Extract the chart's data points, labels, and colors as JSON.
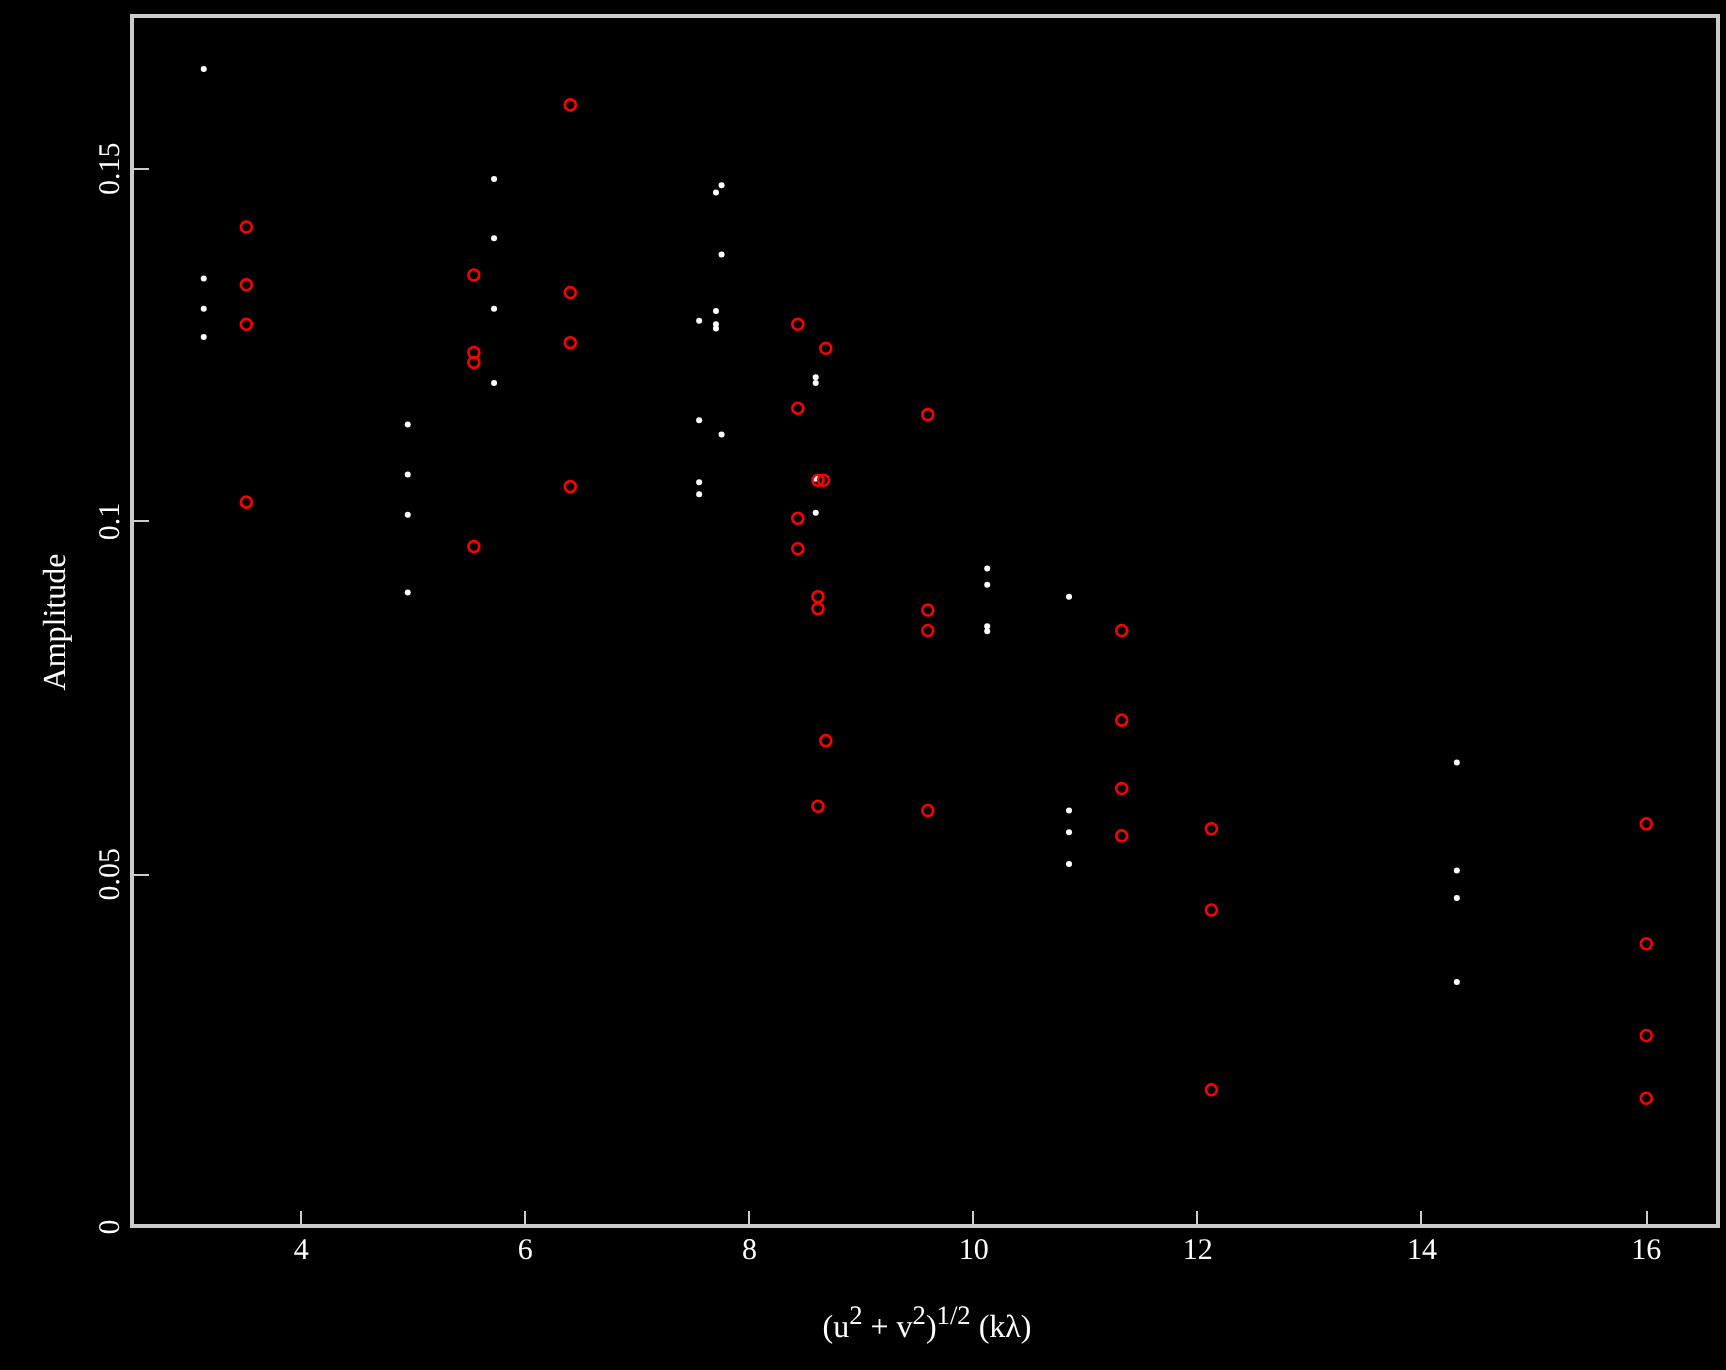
{
  "chart_data": {
    "type": "scatter",
    "xlabel": "(u$^{2}$ + v$^{2}$)$^{1/2}$ (kλ)",
    "ylabel": "Amplitude",
    "xlim": [
      2.5,
      16.65
    ],
    "ylim": [
      0,
      0.1715
    ],
    "xticks": [
      4,
      6,
      8,
      10,
      12,
      14,
      16
    ],
    "yticks": [
      0,
      0.05,
      0.1,
      0.15
    ],
    "grid": false,
    "series": [
      {
        "color": "#ffffff",
        "marker": "circle",
        "x": [
          3.14,
          3.14,
          3.14,
          3.14,
          4.96,
          4.96,
          4.96,
          4.96,
          5.73,
          5.73,
          5.73,
          5.73,
          7.56,
          7.56,
          7.56,
          7.56,
          7.71,
          7.71,
          7.71,
          7.71,
          7.76,
          7.76,
          7.76,
          8.6,
          8.6,
          8.6,
          8.6,
          10.13,
          10.13,
          10.13,
          10.13,
          10.86,
          10.86,
          10.86,
          10.86,
          14.32,
          14.32,
          14.32,
          14.32
        ],
        "values": [
          0.164,
          0.1343,
          0.13,
          0.126,
          0.1136,
          0.1065,
          0.1008,
          0.0898,
          0.1484,
          0.14,
          0.13,
          0.1195,
          0.1283,
          0.1142,
          0.1054,
          0.1037,
          0.1465,
          0.1297,
          0.1278,
          0.1272,
          0.1475,
          0.1377,
          0.1122,
          0.1203,
          0.1195,
          0.1059,
          0.1011,
          0.0932,
          0.0909,
          0.085,
          0.0843,
          0.0892,
          0.0589,
          0.0558,
          0.0513,
          0.0657,
          0.0504,
          0.0465,
          0.0346
        ]
      },
      {
        "color": "#ff0000",
        "marker": "circle",
        "x": [
          3.52,
          3.52,
          3.52,
          3.52,
          5.55,
          5.55,
          5.55,
          5.55,
          6.41,
          6.41,
          6.41,
          6.41,
          8.44,
          8.44,
          8.44,
          8.44,
          8.69,
          8.69,
          8.62,
          8.67,
          8.62,
          8.62,
          8.62,
          9.6,
          9.6,
          9.6,
          9.6,
          11.33,
          11.33,
          11.33,
          11.33,
          12.13,
          12.13,
          12.13,
          16.01,
          16.01,
          16.01,
          16.01
        ],
        "values": [
          0.1416,
          0.1334,
          0.1278,
          0.1026,
          0.1348,
          0.1238,
          0.1224,
          0.0963,
          0.1589,
          0.1323,
          0.1252,
          0.1048,
          0.1278,
          0.1159,
          0.1003,
          0.096,
          0.1244,
          0.0688,
          0.1057,
          0.1057,
          0.0892,
          0.0875,
          0.0595,
          0.115,
          0.0873,
          0.0844,
          0.0589,
          0.0844,
          0.0717,
          0.062,
          0.0553,
          0.0563,
          0.0448,
          0.0193,
          0.057,
          0.04,
          0.027,
          0.0181
        ]
      }
    ]
  }
}
